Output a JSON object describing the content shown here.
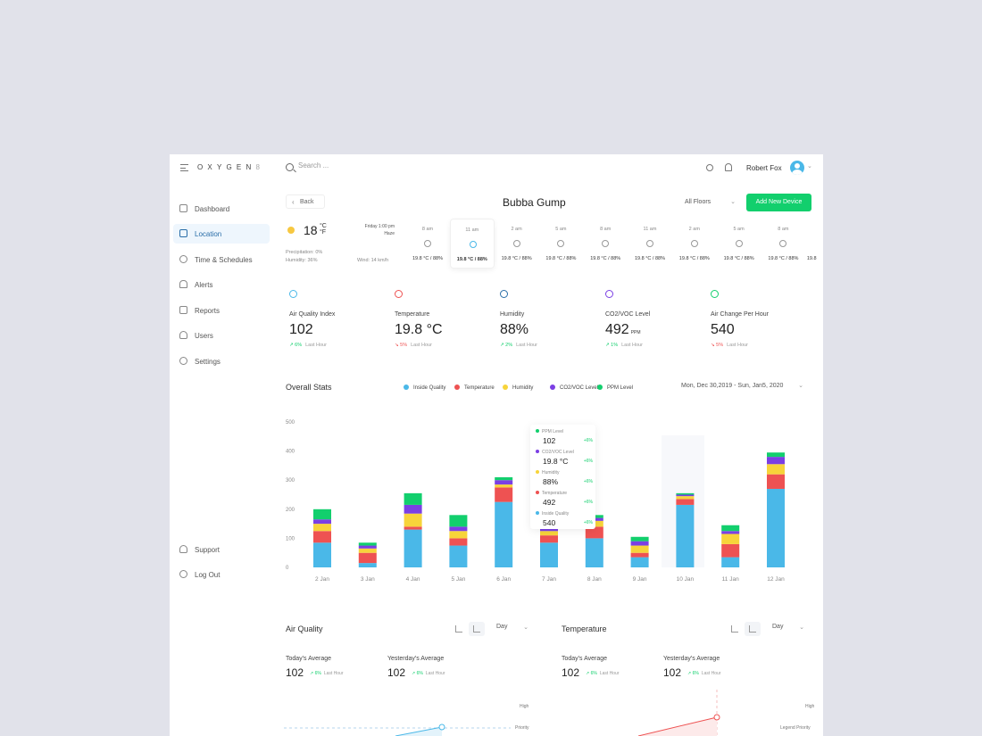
{
  "app": {
    "logo": "OXYGEN",
    "logo_sup": "8"
  },
  "search": {
    "placeholder": "Search ..."
  },
  "header": {
    "user_name": "Robert Fox",
    "avatar_chevron": "⌄"
  },
  "sidebar": {
    "items": [
      {
        "label": "Dashboard",
        "icon": "dashboard-icon"
      },
      {
        "label": "Location",
        "icon": "map-icon",
        "active": true
      },
      {
        "label": "Time & Schedules",
        "icon": "clock-icon"
      },
      {
        "label": "Alerts",
        "icon": "bell-icon"
      },
      {
        "label": "Reports",
        "icon": "report-icon"
      },
      {
        "label": "Users",
        "icon": "users-icon"
      },
      {
        "label": "Settings",
        "icon": "gear-icon"
      }
    ],
    "bottom": [
      {
        "label": "Support",
        "icon": "headphones-icon"
      },
      {
        "label": "Log Out",
        "icon": "power-icon"
      }
    ]
  },
  "page": {
    "back_label": "Back",
    "title": "Bubba Gump",
    "floor_select": "All Floors",
    "add_button": "Add New Device"
  },
  "weather": {
    "temp": "18",
    "unit": "°C °F",
    "date": "Friday 1:00 pm",
    "condition": "Haze",
    "precipitation": "Precipitation: 0%",
    "humidity": "Humidity: 36%",
    "wind": "Wind: 14 km/h",
    "hours": [
      {
        "time": "8 am",
        "value": "19.8 °C / 88%"
      },
      {
        "time": "11 am",
        "value": "19.8 °C / 88%",
        "active": true
      },
      {
        "time": "2 am",
        "value": "19.8 °C / 88%"
      },
      {
        "time": "5 am",
        "value": "19.8 °C / 88%"
      },
      {
        "time": "8 am",
        "value": "19.8 °C / 88%"
      },
      {
        "time": "11 am",
        "value": "19.8 °C / 88%"
      },
      {
        "time": "2 am",
        "value": "19.8 °C / 88%"
      },
      {
        "time": "5 am",
        "value": "19.8 °C / 88%"
      },
      {
        "time": "8 am",
        "value": "19.8 °C / 88%"
      },
      {
        "time": "",
        "value": "19.8"
      }
    ]
  },
  "stats": [
    {
      "label": "Air Quality Index",
      "value": "102",
      "unit": "",
      "arrow": "↗",
      "change": "6%",
      "dir": "up",
      "last": "Last Hour",
      "color": "#4ab8e8"
    },
    {
      "label": "Temperature",
      "value": "19.8 °C",
      "unit": "",
      "arrow": "↘",
      "change": "5%",
      "dir": "down",
      "last": "Last Hour",
      "color": "#ee5252"
    },
    {
      "label": "Humidity",
      "value": "88%",
      "unit": "",
      "arrow": "↗",
      "change": "2%",
      "dir": "up",
      "last": "Last Hour",
      "color": "#2a6ea8"
    },
    {
      "label": "CO2/VOC Level",
      "value": "492",
      "unit": "PPM",
      "arrow": "↗",
      "change": "1%",
      "dir": "up",
      "last": "Last Hour",
      "color": "#7b3fe4"
    },
    {
      "label": "Air Change Per Hour",
      "value": "540",
      "unit": "",
      "arrow": "↘",
      "change": "5%",
      "dir": "down",
      "last": "Last Hour",
      "color": "#12cf6d"
    }
  ],
  "overall": {
    "title": "Overall Stats",
    "date_range": "Mon, Dec 30,2019 - Sun, Jan5, 2020",
    "legend": [
      {
        "label": "Inside Quality",
        "color": "#4ab8e8"
      },
      {
        "label": "Temperature",
        "color": "#ee5252"
      },
      {
        "label": "Humidity",
        "color": "#f7d43a"
      },
      {
        "label": "CO2/VOC Level",
        "color": "#7b3fe4"
      },
      {
        "label": "PPM Level",
        "color": "#12cf6d"
      }
    ]
  },
  "tooltip": [
    {
      "label": "PPM Level",
      "value": "102",
      "pct": "+6%",
      "color": "#12cf6d"
    },
    {
      "label": "CO2/VOC Level",
      "value": "19.8 °C",
      "pct": "+6%",
      "color": "#7b3fe4"
    },
    {
      "label": "Humidity",
      "value": "88%",
      "pct": "+6%",
      "color": "#f7d43a"
    },
    {
      "label": "Temperature",
      "value": "492",
      "pct": "+6%",
      "color": "#ee5252"
    },
    {
      "label": "Inside Quality",
      "value": "540",
      "pct": "+6%",
      "color": "#4ab8e8"
    }
  ],
  "chart_data": {
    "type": "bar",
    "stacked": true,
    "title": "Overall Stats",
    "categories": [
      "2 Jan",
      "3 Jan",
      "4 Jan",
      "5 Jan",
      "6 Jan",
      "7 Jan",
      "8 Jan",
      "9 Jan",
      "10 Jan",
      "11 Jan",
      "12 Jan"
    ],
    "yticks": [
      "0",
      "100",
      "200",
      "300",
      "400",
      "500"
    ],
    "ylim": [
      0,
      500
    ],
    "series": [
      {
        "name": "Inside Quality",
        "color": "#4ab8e8",
        "values": [
          85,
          15,
          130,
          75,
          225,
          85,
          100,
          35,
          215,
          35,
          270
        ]
      },
      {
        "name": "Temperature",
        "color": "#ee5252",
        "values": [
          40,
          35,
          10,
          25,
          50,
          25,
          40,
          15,
          20,
          45,
          50
        ]
      },
      {
        "name": "Humidity",
        "color": "#f7d43a",
        "values": [
          25,
          15,
          45,
          25,
          10,
          15,
          20,
          25,
          10,
          35,
          35
        ]
      },
      {
        "name": "CO2/VOC Level",
        "color": "#7b3fe4",
        "values": [
          15,
          10,
          30,
          15,
          15,
          10,
          10,
          15,
          5,
          10,
          25
        ]
      },
      {
        "name": "PPM Level",
        "color": "#12cf6d",
        "values": [
          35,
          10,
          40,
          40,
          10,
          10,
          10,
          15,
          5,
          20,
          15
        ]
      }
    ]
  },
  "panels": [
    {
      "title": "Air Quality",
      "period": "Day",
      "today_label": "Today's Average",
      "today_value": "102",
      "today_change": "6%",
      "yesterday_label": "Yesterday's Average",
      "yesterday_value": "102",
      "yesterday_change": "6%",
      "last": "Last Hour",
      "high": "High",
      "priority": "Priority"
    },
    {
      "title": "Temperature",
      "period": "Day",
      "today_label": "Today's Average",
      "today_value": "102",
      "today_change": "6%",
      "yesterday_label": "Yesterday's Average",
      "yesterday_value": "102",
      "yesterday_change": "6%",
      "last": "Last Hour",
      "high": "High",
      "priority": "Legend Priority"
    }
  ],
  "arrow_up": "↗"
}
